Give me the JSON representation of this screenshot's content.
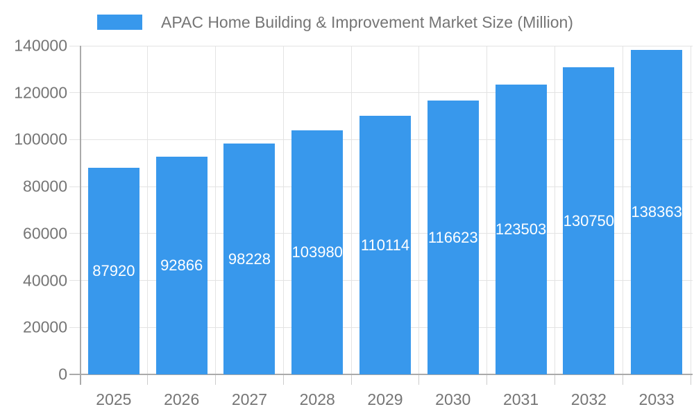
{
  "legend": {
    "series_label": "APAC Home Building & Improvement Market Size (Million)"
  },
  "chart_data": {
    "type": "bar",
    "title": "APAC Home Building & Improvement Market Size (Million)",
    "categories": [
      "2025",
      "2026",
      "2027",
      "2028",
      "2029",
      "2030",
      "2031",
      "2032",
      "2033"
    ],
    "values": [
      87920,
      92866,
      98228,
      103980,
      110114,
      116623,
      123503,
      130750,
      138363
    ],
    "xlabel": "",
    "ylabel": "",
    "ylim": [
      0,
      140000
    ],
    "ytick_interval": 20000,
    "ytick_labels": [
      "0",
      "20000",
      "40000",
      "60000",
      "80000",
      "100000",
      "120000",
      "140000"
    ],
    "grid": true,
    "legend_position": "top-left",
    "value_labels": "inside-middle",
    "colors": {
      "bar": "#3898EC",
      "bar_label_text": "#ffffff",
      "axis_text": "#757575",
      "axis_line": "#aaaaaa",
      "gridline": "#e3e3e3",
      "tick": "#cccccc",
      "background": "#ffffff"
    }
  }
}
